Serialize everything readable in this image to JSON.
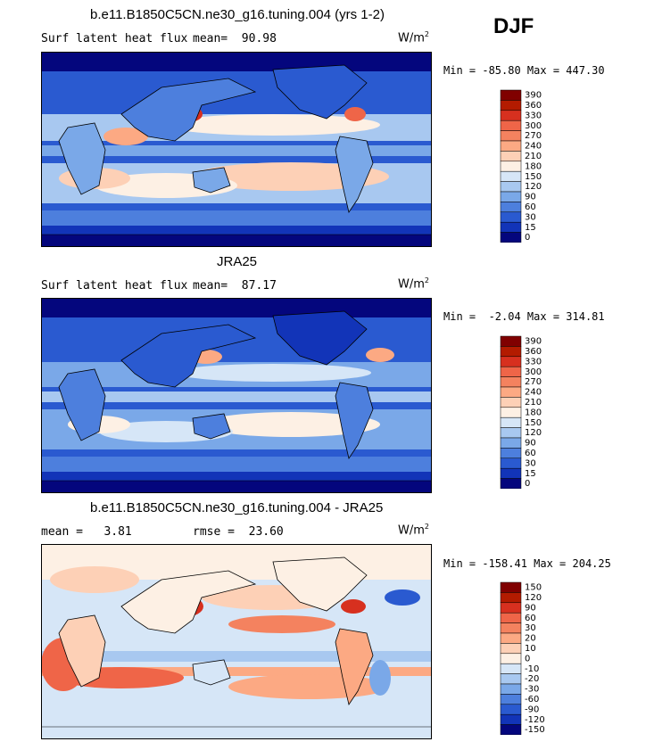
{
  "season": "DJF",
  "panels": [
    {
      "title": "b.e11.B1850C5CN.ne30_g16.tuning.004 (yrs 1-2)",
      "subtitle_left": "Surf latent heat flux",
      "stat_left": "mean=  90.98",
      "units_base": "W/m",
      "units_exp": "2",
      "minmax": "Min = -85.80 Max = 447.30",
      "colorbar": {
        "labels": [
          "390",
          "360",
          "330",
          "300",
          "270",
          "240",
          "210",
          "180",
          "150",
          "120",
          "90",
          "60",
          "30",
          "15",
          "0"
        ],
        "colors": [
          "#800000",
          "#b31b00",
          "#d7301f",
          "#ef6548",
          "#f4825f",
          "#fca983",
          "#fdd0b6",
          "#fdf0e4",
          "#d6e6f7",
          "#a8c8f0",
          "#7aa8e8",
          "#4d7fdd",
          "#2a5ad0",
          "#1234b8",
          "#04067d"
        ]
      },
      "map_type": "model-latent-heat"
    },
    {
      "title": "JRA25",
      "subtitle_left": "Surf latent heat flux",
      "stat_left": "mean=  87.17",
      "units_base": "W/m",
      "units_exp": "2",
      "minmax": "Min =  -2.04 Max = 314.81",
      "colorbar": {
        "labels": [
          "390",
          "360",
          "330",
          "300",
          "270",
          "240",
          "210",
          "180",
          "150",
          "120",
          "90",
          "60",
          "30",
          "15",
          "0"
        ],
        "colors": [
          "#800000",
          "#b31b00",
          "#d7301f",
          "#ef6548",
          "#f4825f",
          "#fca983",
          "#fdd0b6",
          "#fdf0e4",
          "#d6e6f7",
          "#a8c8f0",
          "#7aa8e8",
          "#4d7fdd",
          "#2a5ad0",
          "#1234b8",
          "#04067d"
        ]
      },
      "map_type": "obs-latent-heat"
    },
    {
      "title": "b.e11.B1850C5CN.ne30_g16.tuning.004 - JRA25",
      "subtitle_left": "mean =   3.81",
      "stat_left": "rmse =  23.60",
      "units_base": "W/m",
      "units_exp": "2",
      "minmax": "Min = -158.41 Max = 204.25",
      "colorbar": {
        "labels": [
          "150",
          "120",
          "90",
          "60",
          "30",
          "20",
          "10",
          "0",
          "-10",
          "-20",
          "-30",
          "-60",
          "-90",
          "-120",
          "-150"
        ],
        "colors": [
          "#800000",
          "#b31b00",
          "#d7301f",
          "#ef6548",
          "#f4825f",
          "#fca983",
          "#fdd0b6",
          "#fdf0e4",
          "#d6e6f7",
          "#a8c8f0",
          "#7aa8e8",
          "#4d7fdd",
          "#2a5ad0",
          "#1234b8",
          "#04067d"
        ]
      },
      "map_type": "difference"
    }
  ]
}
